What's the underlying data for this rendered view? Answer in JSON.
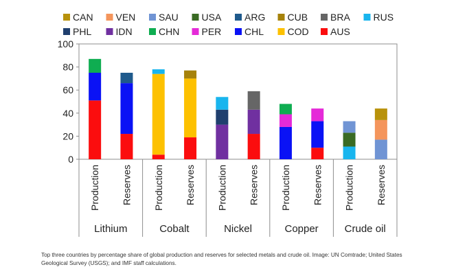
{
  "caption": "Top three countries by percentage share of global production and reserves for selected metals and crude oil. Image: UN Comtrade; United States Geological Survey (USGS); and IMF staff calculations.",
  "colors": {
    "CAN": "#b8920b",
    "VEN": "#f4955c",
    "SAU": "#7094d4",
    "USA": "#3a6b24",
    "ARG": "#1f5a8c",
    "CUB": "#a6820b",
    "BRA": "#666666",
    "RUS": "#19b5ee",
    "PHL": "#1f3f6e",
    "IDN": "#7030a0",
    "CHN": "#0fad51",
    "PER": "#e52ad8",
    "CHL": "#0a12f5",
    "COD": "#fdc100",
    "AUS": "#fb0d0e"
  },
  "chart_data": {
    "type": "bar",
    "stacked": true,
    "title": "",
    "xlabel": "",
    "ylabel": "",
    "ylim": [
      0,
      100
    ],
    "yticks": [
      0,
      20,
      40,
      60,
      80,
      100
    ],
    "legend_position": "top",
    "legend": [
      "CAN",
      "VEN",
      "SAU",
      "USA",
      "ARG",
      "CUB",
      "BRA",
      "RUS",
      "PHL",
      "IDN",
      "CHN",
      "PER",
      "CHL",
      "COD",
      "AUS"
    ],
    "groups": [
      {
        "name": "Lithium",
        "bars": [
          {
            "label": "Production",
            "segments": [
              {
                "country": "AUS",
                "value": 51
              },
              {
                "country": "CHL",
                "value": 24
              },
              {
                "country": "CHN",
                "value": 12
              }
            ]
          },
          {
            "label": "Reserves",
            "segments": [
              {
                "country": "AUS",
                "value": 22
              },
              {
                "country": "CHL",
                "value": 44
              },
              {
                "country": "ARG",
                "value": 9
              }
            ]
          }
        ]
      },
      {
        "name": "Cobalt",
        "bars": [
          {
            "label": "Production",
            "segments": [
              {
                "country": "AUS",
                "value": 4
              },
              {
                "country": "COD",
                "value": 70
              },
              {
                "country": "RUS",
                "value": 4
              }
            ]
          },
          {
            "label": "Reserves",
            "segments": [
              {
                "country": "AUS",
                "value": 19
              },
              {
                "country": "COD",
                "value": 51
              },
              {
                "country": "CUB",
                "value": 7
              }
            ]
          }
        ]
      },
      {
        "name": "Nickel",
        "bars": [
          {
            "label": "Production",
            "segments": [
              {
                "country": "IDN",
                "value": 30
              },
              {
                "country": "PHL",
                "value": 13
              },
              {
                "country": "RUS",
                "value": 11
              }
            ]
          },
          {
            "label": "Reserves",
            "segments": [
              {
                "country": "AUS",
                "value": 22
              },
              {
                "country": "IDN",
                "value": 21
              },
              {
                "country": "BRA",
                "value": 16
              }
            ]
          }
        ]
      },
      {
        "name": "Copper",
        "bars": [
          {
            "label": "Production",
            "segments": [
              {
                "country": "CHL",
                "value": 28
              },
              {
                "country": "PER",
                "value": 11
              },
              {
                "country": "CHN",
                "value": 9
              }
            ]
          },
          {
            "label": "Reserves",
            "segments": [
              {
                "country": "AUS",
                "value": 10
              },
              {
                "country": "CHL",
                "value": 23
              },
              {
                "country": "PER",
                "value": 11
              }
            ]
          }
        ]
      },
      {
        "name": "Crude oil",
        "bars": [
          {
            "label": "Production",
            "segments": [
              {
                "country": "RUS",
                "value": 11
              },
              {
                "country": "USA",
                "value": 12
              },
              {
                "country": "SAU",
                "value": 10
              }
            ]
          },
          {
            "label": "Reserves",
            "segments": [
              {
                "country": "SAU",
                "value": 17
              },
              {
                "country": "VEN",
                "value": 17
              },
              {
                "country": "CAN",
                "value": 10
              }
            ]
          }
        ]
      }
    ]
  }
}
